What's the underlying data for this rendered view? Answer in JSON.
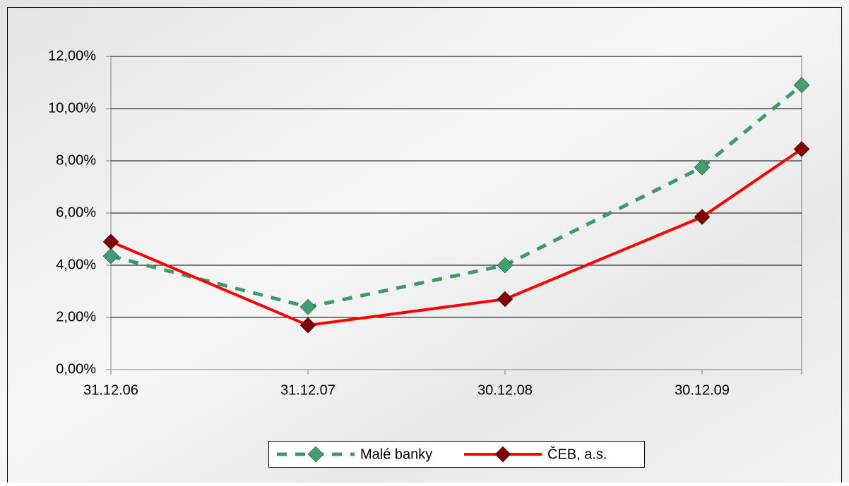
{
  "chart_data": {
    "type": "line",
    "categories": [
      "31.12.06",
      "31.12.07",
      "30.12.08",
      "30.12.09",
      null
    ],
    "series": [
      {
        "name": "Malé banky",
        "color": "#3a9a68",
        "marker_color": "#3f9f6f",
        "dash": true,
        "values": [
          4.35,
          2.4,
          4.0,
          7.75,
          10.9
        ]
      },
      {
        "name": "ČEB, a.s.",
        "color": "#ff0000",
        "marker_color": "#800000",
        "dash": false,
        "values": [
          4.9,
          1.7,
          2.7,
          5.85,
          8.45
        ]
      }
    ],
    "ylim": [
      0,
      12
    ],
    "yticks": [
      {
        "value": 0,
        "label": "0,00%"
      },
      {
        "value": 2,
        "label": "2,00%"
      },
      {
        "value": 4,
        "label": "4,00%"
      },
      {
        "value": 6,
        "label": "6,00%"
      },
      {
        "value": 8,
        "label": "8,00%"
      },
      {
        "value": 10,
        "label": "10,00%"
      },
      {
        "value": 12,
        "label": "12,00%"
      }
    ],
    "grid": true,
    "legend": "bottom"
  }
}
